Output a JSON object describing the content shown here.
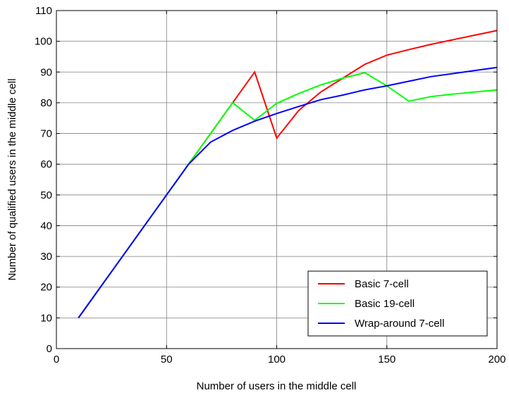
{
  "chart_data": {
    "type": "line",
    "title": "",
    "xlabel": "Number of users in the middle cell",
    "ylabel": "Number of qualified users in the middle cell",
    "xlim": [
      0,
      200
    ],
    "ylim": [
      0,
      110
    ],
    "xticks": [
      0,
      50,
      100,
      150,
      200
    ],
    "xtick_labels": [
      "0",
      "50",
      "100",
      "150",
      "200"
    ],
    "yticks": [
      0,
      10,
      20,
      30,
      40,
      50,
      60,
      70,
      80,
      90,
      100,
      110
    ],
    "ytick_labels": [
      "0",
      "10",
      "20",
      "30",
      "40",
      "50",
      "60",
      "70",
      "80",
      "90",
      "100",
      "110"
    ],
    "grid": true,
    "legend_position": "bottom-right",
    "series": [
      {
        "name": "Basic 7-cell",
        "color": "#ff0000",
        "x": [
          10,
          20,
          30,
          40,
          50,
          60,
          70,
          80,
          90,
          100,
          110,
          120,
          130,
          140,
          150,
          160,
          170,
          180,
          190,
          200
        ],
        "y": [
          10,
          20,
          30,
          40,
          50,
          60,
          70,
          80,
          90,
          68.5,
          77.5,
          83.5,
          88,
          92.5,
          95.5,
          97.3,
          99,
          100.5,
          102,
          103.5
        ]
      },
      {
        "name": "Basic 19-cell",
        "color": "#00ff00",
        "x": [
          10,
          20,
          30,
          40,
          50,
          60,
          70,
          80,
          90,
          100,
          110,
          120,
          130,
          140,
          150,
          160,
          170,
          180,
          190,
          200
        ],
        "y": [
          10,
          20,
          30,
          40,
          50,
          60,
          70,
          80,
          74.3,
          79.8,
          83,
          85.8,
          88,
          89.8,
          85.5,
          80.5,
          82,
          82.8,
          83.5,
          84.2
        ]
      },
      {
        "name": "Wrap-around 7-cell",
        "color": "#0000ff",
        "x": [
          10,
          20,
          30,
          40,
          50,
          60,
          70,
          80,
          90,
          100,
          110,
          120,
          130,
          140,
          150,
          160,
          170,
          180,
          190,
          200
        ],
        "y": [
          10,
          20,
          30,
          40,
          50,
          60,
          67.2,
          71,
          74,
          76.5,
          78.8,
          81,
          82.5,
          84.2,
          85.5,
          87,
          88.5,
          89.5,
          90.5,
          91.5
        ]
      }
    ]
  }
}
